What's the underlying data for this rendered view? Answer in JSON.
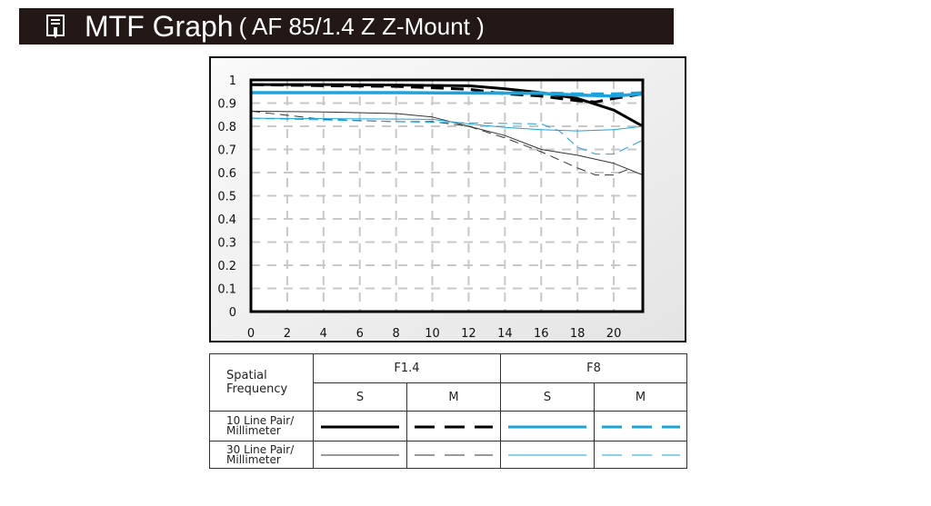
{
  "header": {
    "title": "MTF Graph",
    "subtitle": "( AF 85/1.4 Z  Z-Mount )",
    "icon": "document-pencil-icon"
  },
  "chart_data": {
    "type": "line",
    "title": "MTF Graph",
    "xlabel": "",
    "ylabel": "",
    "xlim": [
      0,
      21.6
    ],
    "ylim": [
      0,
      1
    ],
    "xticks": [
      "0",
      "2",
      "4",
      "6",
      "8",
      "10",
      "12",
      "14",
      "16",
      "18",
      "20"
    ],
    "yticks": [
      "0",
      "0.1",
      "0.2",
      "0.3",
      "0.4",
      "0.5",
      "0.6",
      "0.7",
      "0.8",
      "0.9",
      "1"
    ],
    "grid": true,
    "series": [
      {
        "name": "F1.4 S 10 Line Pair/Millimeter",
        "color": "#000000",
        "width": 3,
        "dash": false,
        "x": [
          0,
          4,
          8,
          12,
          14,
          16,
          18,
          20,
          21.6
        ],
        "y": [
          0.98,
          0.98,
          0.978,
          0.975,
          0.962,
          0.945,
          0.92,
          0.87,
          0.8
        ]
      },
      {
        "name": "F1.4 M 10 Line Pair/Millimeter",
        "color": "#000000",
        "width": 3,
        "dash": true,
        "x": [
          0,
          4,
          8,
          12,
          14,
          16,
          18,
          19,
          20,
          21.6
        ],
        "y": [
          0.98,
          0.975,
          0.972,
          0.96,
          0.94,
          0.93,
          0.91,
          0.905,
          0.92,
          0.94
        ]
      },
      {
        "name": "F8 S 10 Line Pair/Millimeter",
        "color": "#1aa3dd",
        "width": 3.5,
        "dash": false,
        "x": [
          0,
          8,
          16,
          18,
          20,
          21.6
        ],
        "y": [
          0.945,
          0.945,
          0.942,
          0.935,
          0.93,
          0.94
        ]
      },
      {
        "name": "F8 M 10 Line Pair/Millimeter",
        "color": "#1aa3dd",
        "width": 3,
        "dash": true,
        "x": [
          0,
          8,
          16,
          18,
          20,
          21.6
        ],
        "y": [
          0.945,
          0.945,
          0.945,
          0.94,
          0.94,
          0.945
        ]
      },
      {
        "name": "F1.4 S 30 Line Pair/Millimeter",
        "color": "#333333",
        "width": 1,
        "dash": false,
        "x": [
          0,
          4,
          8,
          10,
          12,
          14,
          16,
          18,
          20,
          21.6
        ],
        "y": [
          0.865,
          0.862,
          0.855,
          0.84,
          0.8,
          0.76,
          0.7,
          0.675,
          0.64,
          0.59
        ]
      },
      {
        "name": "F1.4 M 30 Line Pair/Millimeter",
        "color": "#333333",
        "width": 1,
        "dash": true,
        "x": [
          0,
          4,
          8,
          10,
          12,
          14,
          16,
          18,
          19,
          20,
          21
        ],
        "y": [
          0.865,
          0.83,
          0.82,
          0.82,
          0.8,
          0.75,
          0.69,
          0.62,
          0.59,
          0.59,
          0.62
        ]
      },
      {
        "name": "F8 S 30 Line Pair/Millimeter",
        "color": "#1aa3dd",
        "width": 1,
        "dash": false,
        "x": [
          0,
          10,
          12,
          14,
          16,
          18,
          20,
          21.6
        ],
        "y": [
          0.835,
          0.83,
          0.81,
          0.795,
          0.785,
          0.78,
          0.785,
          0.8
        ]
      },
      {
        "name": "F8 M 30 Line Pair/Millimeter",
        "color": "#1aa3dd",
        "width": 1,
        "dash": true,
        "x": [
          0,
          8,
          12,
          16,
          17,
          18,
          19,
          20,
          21.6
        ],
        "y": [
          0.835,
          0.82,
          0.815,
          0.81,
          0.78,
          0.71,
          0.68,
          0.68,
          0.74
        ]
      }
    ]
  },
  "legend": {
    "header": "Spatial Frequency",
    "apertures": [
      "F1.4",
      "F8"
    ],
    "cols": [
      "S",
      "M",
      "S",
      "M"
    ],
    "rows": [
      "10 Line Pair/ Millimeter",
      "30 Line Pair/ Millimeter"
    ]
  }
}
